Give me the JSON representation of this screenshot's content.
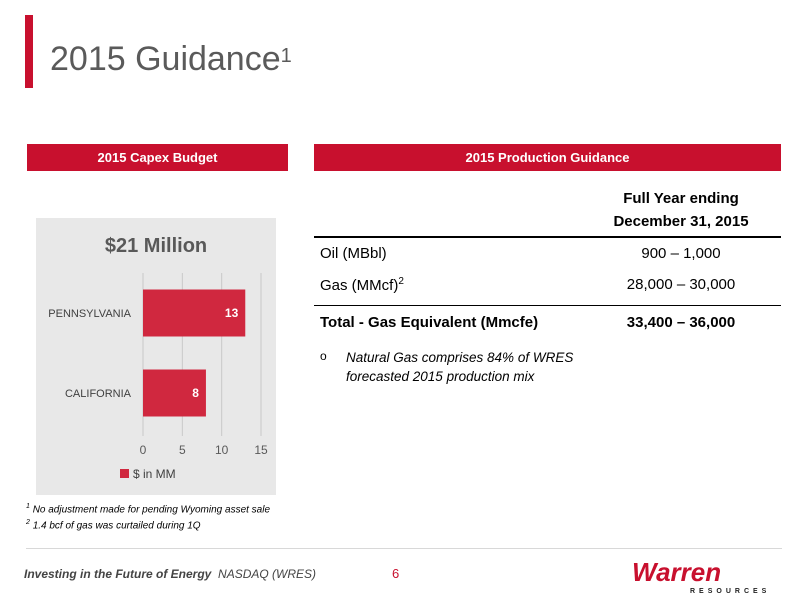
{
  "title": {
    "text": "2015 Guidance",
    "sup": "1"
  },
  "headers": {
    "capex": "2015 Capex Budget",
    "production": "2015 Production Guidance"
  },
  "chart_data": {
    "type": "bar",
    "orientation": "horizontal",
    "title": "$21 Million",
    "categories": [
      "PENNSYLVANIA",
      "CALIFORNIA"
    ],
    "series": [
      {
        "name": "$ in MM",
        "values": [
          13,
          8
        ]
      }
    ],
    "xlim": [
      0,
      15
    ],
    "xticks": [
      0,
      5,
      10,
      15
    ],
    "grid": true,
    "legend": "bottom",
    "bar_color": "#d0283f"
  },
  "table": {
    "head": {
      "line1": "Full Year ending",
      "line2": "December 31, 2015"
    },
    "rows": [
      {
        "label": "Oil (MBbl)",
        "value": "900 – 1,000"
      },
      {
        "label": "Gas (MMcf)",
        "sup": "2",
        "value": "28,000 – 30,000"
      }
    ],
    "total": {
      "label": "Total - Gas Equivalent (Mmcfe)",
      "value": "33,400 – 36,000"
    }
  },
  "bullet": {
    "marker": "o",
    "text": "Natural Gas comprises 84% of WRES forecasted 2015 production mix"
  },
  "footnotes": [
    {
      "num": "1",
      "text": "No adjustment made for pending Wyoming asset sale"
    },
    {
      "num": "2",
      "text": "1.4 bcf of gas was curtailed during 1Q"
    }
  ],
  "footer": {
    "tagline": "Investing in the Future of Energy",
    "ticker": "NASDAQ (WRES)",
    "page": "6"
  },
  "logo": {
    "name": "Warren",
    "sub": "RESOURCES",
    "color": "#c8102e"
  }
}
